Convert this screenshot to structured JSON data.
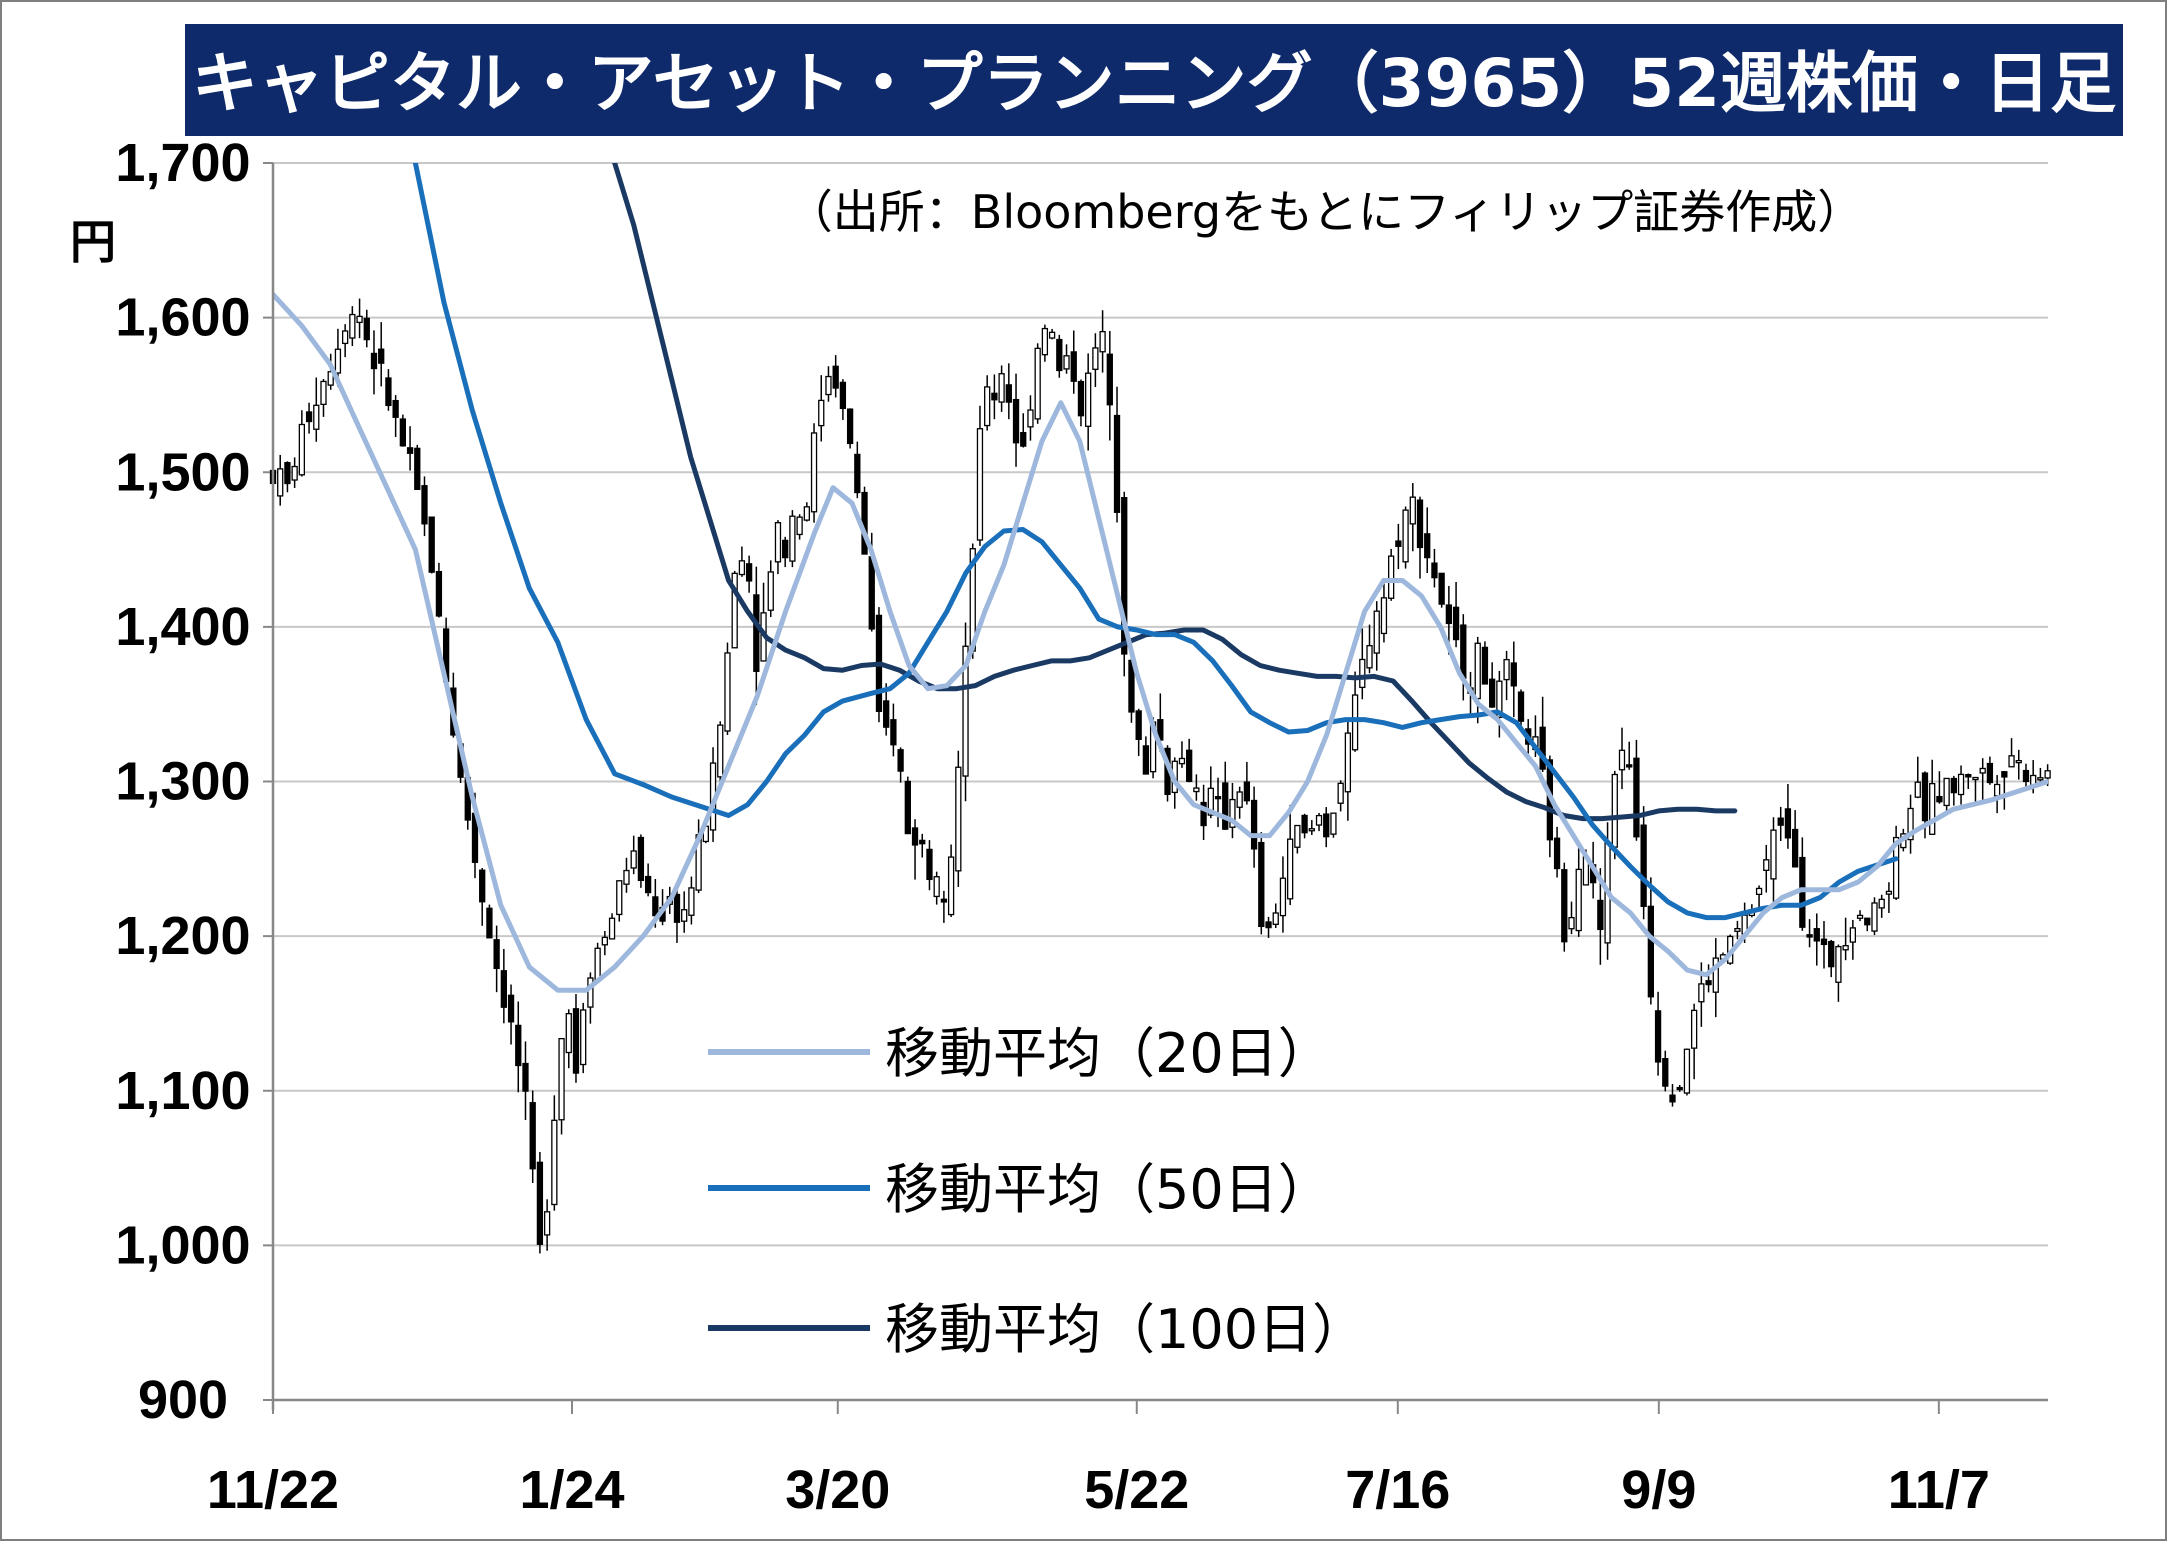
{
  "chart_data": {
    "type": "candlestick",
    "title": "キャピタル・アセット・プランニング（3965）52週株価・日足",
    "source_note": "（出所：Bloombergをもとにフィリップ証券作成）",
    "y_unit": "円",
    "ylim": [
      900,
      1700
    ],
    "y_ticks": [
      "1,700",
      "1,600",
      "1,500",
      "1,400",
      "1,300",
      "1,200",
      "1,100",
      "1,000",
      "900"
    ],
    "y_tick_values": [
      1700,
      1600,
      1500,
      1400,
      1300,
      1200,
      1100,
      1000,
      900
    ],
    "x_tick_labels": [
      "11/22",
      "1/24",
      "3/20",
      "5/22",
      "7/16",
      "9/9",
      "11/7"
    ],
    "x_tick_days": [
      0,
      63,
      119,
      182,
      237,
      292,
      351
    ],
    "x_range_days": [
      0,
      374
    ],
    "grid": "horizontal",
    "candle_up_color": "#ffffff",
    "candle_down_color": "#000000",
    "legend": [
      {
        "label": "移動平均（20日）",
        "color": "#9db8dc"
      },
      {
        "label": "移動平均（50日）",
        "color": "#1a6fba"
      },
      {
        "label": "移動平均（100日）",
        "color": "#1a3a64"
      }
    ],
    "price_path": [
      [
        0,
        1500
      ],
      [
        3,
        1490
      ],
      [
        6,
        1525
      ],
      [
        9,
        1550
      ],
      [
        12,
        1570
      ],
      [
        15,
        1600
      ],
      [
        18,
        1605
      ],
      [
        21,
        1575
      ],
      [
        24,
        1550
      ],
      [
        27,
        1520
      ],
      [
        30,
        1490
      ],
      [
        33,
        1450
      ],
      [
        36,
        1380
      ],
      [
        39,
        1310
      ],
      [
        42,
        1260
      ],
      [
        45,
        1210
      ],
      [
        48,
        1170
      ],
      [
        51,
        1130
      ],
      [
        54,
        1070
      ],
      [
        56,
        990
      ],
      [
        58,
        1040
      ],
      [
        60,
        1120
      ],
      [
        62,
        1160
      ],
      [
        64,
        1110
      ],
      [
        66,
        1180
      ],
      [
        68,
        1190
      ],
      [
        70,
        1200
      ],
      [
        72,
        1220
      ],
      [
        74,
        1245
      ],
      [
        76,
        1250
      ],
      [
        78,
        1235
      ],
      [
        80,
        1220
      ],
      [
        82,
        1215
      ],
      [
        84,
        1225
      ],
      [
        86,
        1210
      ],
      [
        88,
        1230
      ],
      [
        90,
        1260
      ],
      [
        92,
        1290
      ],
      [
        94,
        1330
      ],
      [
        96,
        1390
      ],
      [
        98,
        1460
      ],
      [
        100,
        1440
      ],
      [
        102,
        1380
      ],
      [
        104,
        1420
      ],
      [
        106,
        1470
      ],
      [
        108,
        1450
      ],
      [
        110,
        1480
      ],
      [
        112,
        1470
      ],
      [
        114,
        1520
      ],
      [
        116,
        1560
      ],
      [
        118,
        1570
      ],
      [
        120,
        1540
      ],
      [
        122,
        1510
      ],
      [
        124,
        1470
      ],
      [
        126,
        1400
      ],
      [
        128,
        1320
      ],
      [
        130,
        1340
      ],
      [
        132,
        1310
      ],
      [
        134,
        1260
      ],
      [
        136,
        1270
      ],
      [
        138,
        1240
      ],
      [
        140,
        1250
      ],
      [
        142,
        1230
      ],
      [
        144,
        1290
      ],
      [
        146,
        1380
      ],
      [
        148,
        1480
      ],
      [
        150,
        1560
      ],
      [
        152,
        1550
      ],
      [
        154,
        1570
      ],
      [
        156,
        1530
      ],
      [
        158,
        1510
      ],
      [
        160,
        1560
      ],
      [
        162,
        1600
      ],
      [
        164,
        1590
      ],
      [
        166,
        1560
      ],
      [
        168,
        1580
      ],
      [
        170,
        1540
      ],
      [
        172,
        1560
      ],
      [
        174,
        1590
      ],
      [
        176,
        1570
      ],
      [
        178,
        1480
      ],
      [
        180,
        1350
      ],
      [
        182,
        1330
      ],
      [
        184,
        1300
      ],
      [
        186,
        1360
      ],
      [
        188,
        1290
      ],
      [
        190,
        1320
      ],
      [
        192,
        1310
      ],
      [
        194,
        1300
      ],
      [
        196,
        1280
      ],
      [
        198,
        1290
      ],
      [
        200,
        1270
      ],
      [
        202,
        1290
      ],
      [
        204,
        1300
      ],
      [
        206,
        1270
      ],
      [
        208,
        1210
      ],
      [
        210,
        1200
      ],
      [
        212,
        1230
      ],
      [
        214,
        1250
      ],
      [
        216,
        1270
      ],
      [
        218,
        1260
      ],
      [
        220,
        1280
      ],
      [
        222,
        1270
      ],
      [
        224,
        1290
      ],
      [
        226,
        1310
      ],
      [
        228,
        1350
      ],
      [
        230,
        1380
      ],
      [
        232,
        1410
      ],
      [
        234,
        1420
      ],
      [
        236,
        1450
      ],
      [
        238,
        1470
      ],
      [
        240,
        1480
      ],
      [
        242,
        1460
      ],
      [
        244,
        1440
      ],
      [
        246,
        1420
      ],
      [
        248,
        1390
      ],
      [
        250,
        1380
      ],
      [
        252,
        1370
      ],
      [
        254,
        1380
      ],
      [
        256,
        1360
      ],
      [
        258,
        1350
      ],
      [
        260,
        1370
      ],
      [
        262,
        1340
      ],
      [
        264,
        1330
      ],
      [
        266,
        1320
      ],
      [
        268,
        1290
      ],
      [
        270,
        1250
      ],
      [
        272,
        1200
      ],
      [
        274,
        1230
      ],
      [
        276,
        1270
      ],
      [
        278,
        1230
      ],
      [
        280,
        1200
      ],
      [
        282,
        1290
      ],
      [
        284,
        1330
      ],
      [
        286,
        1300
      ],
      [
        288,
        1250
      ],
      [
        290,
        1180
      ],
      [
        292,
        1120
      ],
      [
        294,
        1110
      ],
      [
        296,
        1100
      ],
      [
        298,
        1130
      ],
      [
        300,
        1160
      ],
      [
        302,
        1170
      ],
      [
        304,
        1180
      ],
      [
        306,
        1190
      ],
      [
        308,
        1200
      ],
      [
        310,
        1210
      ],
      [
        312,
        1220
      ],
      [
        314,
        1240
      ],
      [
        316,
        1260
      ],
      [
        318,
        1280
      ],
      [
        320,
        1270
      ],
      [
        322,
        1220
      ],
      [
        324,
        1200
      ],
      [
        326,
        1190
      ],
      [
        328,
        1180
      ],
      [
        330,
        1200
      ],
      [
        332,
        1210
      ],
      [
        334,
        1220
      ],
      [
        336,
        1210
      ],
      [
        338,
        1220
      ],
      [
        340,
        1230
      ],
      [
        342,
        1260
      ],
      [
        344,
        1280
      ],
      [
        346,
        1290
      ],
      [
        348,
        1280
      ],
      [
        350,
        1290
      ],
      [
        352,
        1300
      ],
      [
        354,
        1295
      ],
      [
        356,
        1300
      ],
      [
        358,
        1310
      ],
      [
        360,
        1305
      ],
      [
        362,
        1300
      ],
      [
        364,
        1310
      ],
      [
        366,
        1320
      ],
      [
        368,
        1310
      ],
      [
        370,
        1305
      ],
      [
        372,
        1310
      ],
      [
        374,
        1305
      ]
    ],
    "ma20_path": [
      [
        0,
        1615
      ],
      [
        6,
        1595
      ],
      [
        12,
        1570
      ],
      [
        18,
        1530
      ],
      [
        24,
        1490
      ],
      [
        30,
        1450
      ],
      [
        36,
        1370
      ],
      [
        42,
        1290
      ],
      [
        48,
        1220
      ],
      [
        54,
        1180
      ],
      [
        60,
        1165
      ],
      [
        66,
        1165
      ],
      [
        72,
        1180
      ],
      [
        78,
        1200
      ],
      [
        84,
        1225
      ],
      [
        90,
        1265
      ],
      [
        96,
        1310
      ],
      [
        102,
        1355
      ],
      [
        108,
        1410
      ],
      [
        114,
        1460
      ],
      [
        118,
        1490
      ],
      [
        122,
        1480
      ],
      [
        126,
        1450
      ],
      [
        130,
        1410
      ],
      [
        134,
        1375
      ],
      [
        138,
        1360
      ],
      [
        142,
        1362
      ],
      [
        146,
        1375
      ],
      [
        150,
        1410
      ],
      [
        154,
        1440
      ],
      [
        158,
        1480
      ],
      [
        162,
        1520
      ],
      [
        166,
        1545
      ],
      [
        170,
        1520
      ],
      [
        174,
        1470
      ],
      [
        178,
        1420
      ],
      [
        182,
        1370
      ],
      [
        186,
        1330
      ],
      [
        190,
        1300
      ],
      [
        194,
        1285
      ],
      [
        198,
        1280
      ],
      [
        202,
        1275
      ],
      [
        206,
        1265
      ],
      [
        210,
        1265
      ],
      [
        214,
        1280
      ],
      [
        218,
        1300
      ],
      [
        222,
        1330
      ],
      [
        226,
        1370
      ],
      [
        230,
        1410
      ],
      [
        234,
        1430
      ],
      [
        238,
        1430
      ],
      [
        242,
        1420
      ],
      [
        246,
        1400
      ],
      [
        250,
        1370
      ],
      [
        254,
        1350
      ],
      [
        258,
        1340
      ],
      [
        262,
        1325
      ],
      [
        266,
        1310
      ],
      [
        270,
        1285
      ],
      [
        274,
        1265
      ],
      [
        278,
        1245
      ],
      [
        282,
        1225
      ],
      [
        286,
        1215
      ],
      [
        290,
        1200
      ],
      [
        294,
        1190
      ],
      [
        298,
        1178
      ],
      [
        302,
        1175
      ],
      [
        306,
        1185
      ],
      [
        310,
        1200
      ],
      [
        314,
        1215
      ],
      [
        318,
        1225
      ],
      [
        322,
        1230
      ],
      [
        326,
        1230
      ],
      [
        330,
        1230
      ],
      [
        334,
        1235
      ],
      [
        338,
        1245
      ],
      [
        342,
        1260
      ],
      [
        346,
        1268
      ],
      [
        350,
        1275
      ],
      [
        354,
        1282
      ],
      [
        358,
        1285
      ],
      [
        362,
        1288
      ],
      [
        366,
        1292
      ],
      [
        370,
        1296
      ],
      [
        374,
        1300
      ]
    ],
    "ma50_path": [
      [
        24,
        1800
      ],
      [
        30,
        1700
      ],
      [
        36,
        1610
      ],
      [
        42,
        1540
      ],
      [
        48,
        1480
      ],
      [
        54,
        1425
      ],
      [
        60,
        1390
      ],
      [
        66,
        1340
      ],
      [
        72,
        1305
      ],
      [
        78,
        1298
      ],
      [
        84,
        1290
      ],
      [
        90,
        1284
      ],
      [
        96,
        1278
      ],
      [
        100,
        1285
      ],
      [
        104,
        1300
      ],
      [
        108,
        1318
      ],
      [
        112,
        1330
      ],
      [
        116,
        1345
      ],
      [
        120,
        1352
      ],
      [
        126,
        1357
      ],
      [
        130,
        1360
      ],
      [
        134,
        1370
      ],
      [
        138,
        1390
      ],
      [
        142,
        1410
      ],
      [
        146,
        1435
      ],
      [
        150,
        1452
      ],
      [
        154,
        1462
      ],
      [
        158,
        1463
      ],
      [
        162,
        1455
      ],
      [
        166,
        1440
      ],
      [
        170,
        1425
      ],
      [
        174,
        1405
      ],
      [
        178,
        1400
      ],
      [
        182,
        1398
      ],
      [
        186,
        1395
      ],
      [
        190,
        1395
      ],
      [
        194,
        1390
      ],
      [
        198,
        1378
      ],
      [
        202,
        1362
      ],
      [
        206,
        1345
      ],
      [
        210,
        1338
      ],
      [
        214,
        1332
      ],
      [
        218,
        1333
      ],
      [
        222,
        1338
      ],
      [
        226,
        1340
      ],
      [
        230,
        1340
      ],
      [
        234,
        1338
      ],
      [
        238,
        1335
      ],
      [
        242,
        1338
      ],
      [
        246,
        1340
      ],
      [
        250,
        1342
      ],
      [
        254,
        1343
      ],
      [
        258,
        1345
      ],
      [
        262,
        1338
      ],
      [
        266,
        1322
      ],
      [
        270,
        1306
      ],
      [
        274,
        1290
      ],
      [
        278,
        1272
      ],
      [
        282,
        1258
      ],
      [
        286,
        1245
      ],
      [
        290,
        1233
      ],
      [
        294,
        1222
      ],
      [
        298,
        1215
      ],
      [
        302,
        1212
      ],
      [
        306,
        1212
      ],
      [
        310,
        1215
      ],
      [
        314,
        1218
      ],
      [
        318,
        1220
      ],
      [
        322,
        1220
      ],
      [
        326,
        1225
      ],
      [
        330,
        1235
      ],
      [
        334,
        1242
      ],
      [
        338,
        1246
      ],
      [
        342,
        1250
      ]
    ],
    "ma100_path": [
      [
        72,
        1700
      ],
      [
        76,
        1660
      ],
      [
        80,
        1610
      ],
      [
        84,
        1560
      ],
      [
        88,
        1510
      ],
      [
        92,
        1470
      ],
      [
        96,
        1430
      ],
      [
        100,
        1410
      ],
      [
        104,
        1393
      ],
      [
        108,
        1385
      ],
      [
        112,
        1380
      ],
      [
        116,
        1373
      ],
      [
        120,
        1372
      ],
      [
        124,
        1375
      ],
      [
        128,
        1376
      ],
      [
        132,
        1372
      ],
      [
        136,
        1365
      ],
      [
        140,
        1360
      ],
      [
        144,
        1360
      ],
      [
        148,
        1362
      ],
      [
        152,
        1368
      ],
      [
        156,
        1372
      ],
      [
        160,
        1375
      ],
      [
        164,
        1378
      ],
      [
        168,
        1378
      ],
      [
        172,
        1380
      ],
      [
        176,
        1385
      ],
      [
        180,
        1390
      ],
      [
        184,
        1395
      ],
      [
        188,
        1396
      ],
      [
        192,
        1398
      ],
      [
        196,
        1398
      ],
      [
        200,
        1392
      ],
      [
        204,
        1382
      ],
      [
        208,
        1375
      ],
      [
        212,
        1372
      ],
      [
        216,
        1370
      ],
      [
        220,
        1368
      ],
      [
        224,
        1368
      ],
      [
        228,
        1367
      ],
      [
        232,
        1368
      ],
      [
        236,
        1365
      ],
      [
        240,
        1352
      ],
      [
        244,
        1338
      ],
      [
        248,
        1325
      ],
      [
        252,
        1312
      ],
      [
        256,
        1302
      ],
      [
        260,
        1293
      ],
      [
        264,
        1287
      ],
      [
        268,
        1283
      ],
      [
        272,
        1278
      ],
      [
        276,
        1276
      ],
      [
        280,
        1276
      ],
      [
        284,
        1277
      ],
      [
        288,
        1278
      ],
      [
        292,
        1281
      ],
      [
        296,
        1282
      ],
      [
        300,
        1282
      ],
      [
        304,
        1281
      ],
      [
        308,
        1281
      ]
    ]
  }
}
